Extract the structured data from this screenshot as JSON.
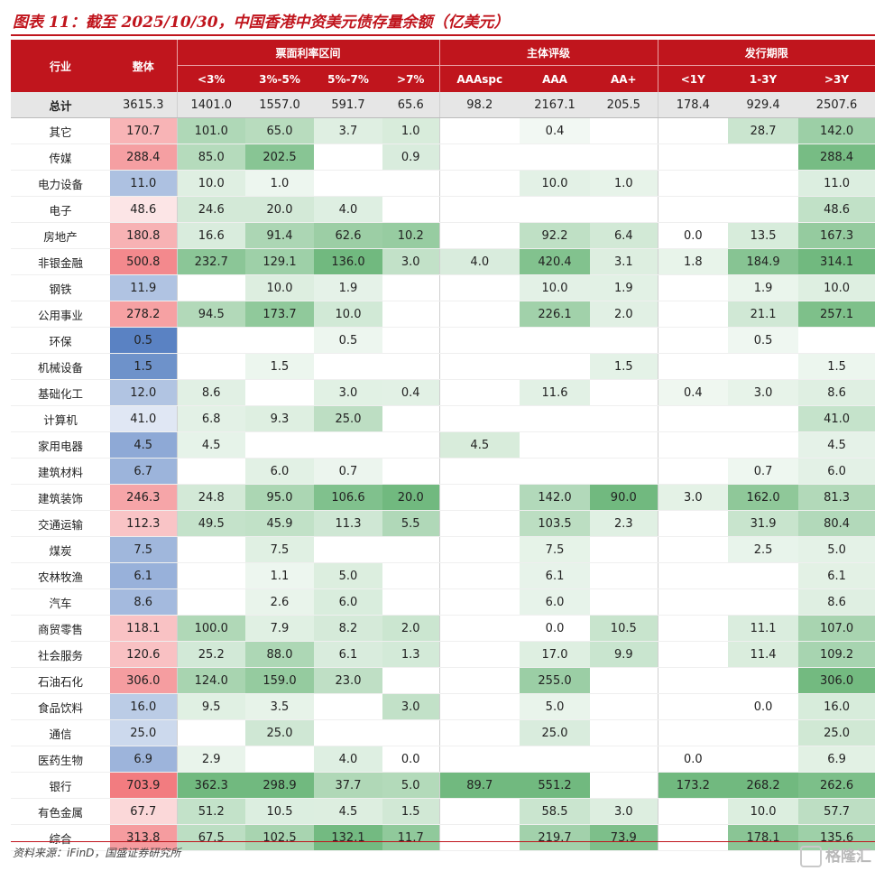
{
  "title": "图表 11：截至 2025/10/30，中国香港中资美元债存量余额（亿美元）",
  "header": {
    "industry": "行业",
    "overall": "整体",
    "group_coupon": "票面利率区间",
    "group_rating": "主体评级",
    "group_term": "发行期限",
    "sub": [
      "<3%",
      "3%-5%",
      "5%-7%",
      ">7%",
      "AAAspc",
      "AAA",
      "AA+",
      "<1Y",
      "1-3Y",
      ">3Y"
    ]
  },
  "total": [
    "总计",
    "3615.3",
    "1401.0",
    "1557.0",
    "591.7",
    "65.6",
    "98.2",
    "2167.1",
    "205.5",
    "178.4",
    "929.4",
    "2507.6"
  ],
  "rows": [
    [
      "其它",
      "170.7",
      "101.0",
      "65.0",
      "3.7",
      "1.0",
      "",
      "0.4",
      "",
      "",
      "28.7",
      "142.0"
    ],
    [
      "传媒",
      "288.4",
      "85.0",
      "202.5",
      "",
      "0.9",
      "",
      "",
      "",
      "",
      "",
      "288.4"
    ],
    [
      "电力设备",
      "11.0",
      "10.0",
      "1.0",
      "",
      "",
      "",
      "10.0",
      "1.0",
      "",
      "",
      "11.0"
    ],
    [
      "电子",
      "48.6",
      "24.6",
      "20.0",
      "4.0",
      "",
      "",
      "",
      "",
      "",
      "",
      "48.6"
    ],
    [
      "房地产",
      "180.8",
      "16.6",
      "91.4",
      "62.6",
      "10.2",
      "",
      "92.2",
      "6.4",
      "0.0",
      "13.5",
      "167.3"
    ],
    [
      "非银金融",
      "500.8",
      "232.7",
      "129.1",
      "136.0",
      "3.0",
      "4.0",
      "420.4",
      "3.1",
      "1.8",
      "184.9",
      "314.1"
    ],
    [
      "钢铁",
      "11.9",
      "",
      "10.0",
      "1.9",
      "",
      "",
      "10.0",
      "1.9",
      "",
      "1.9",
      "10.0"
    ],
    [
      "公用事业",
      "278.2",
      "94.5",
      "173.7",
      "10.0",
      "",
      "",
      "226.1",
      "2.0",
      "",
      "21.1",
      "257.1"
    ],
    [
      "环保",
      "0.5",
      "",
      "",
      "0.5",
      "",
      "",
      "",
      "",
      "",
      "0.5",
      ""
    ],
    [
      "机械设备",
      "1.5",
      "",
      "1.5",
      "",
      "",
      "",
      "",
      "1.5",
      "",
      "",
      "1.5"
    ],
    [
      "基础化工",
      "12.0",
      "8.6",
      "",
      "3.0",
      "0.4",
      "",
      "11.6",
      "",
      "0.4",
      "3.0",
      "8.6"
    ],
    [
      "计算机",
      "41.0",
      "6.8",
      "9.3",
      "25.0",
      "",
      "",
      "",
      "",
      "",
      "",
      "41.0"
    ],
    [
      "家用电器",
      "4.5",
      "4.5",
      "",
      "",
      "",
      "4.5",
      "",
      "",
      "",
      "",
      "4.5"
    ],
    [
      "建筑材料",
      "6.7",
      "",
      "6.0",
      "0.7",
      "",
      "",
      "",
      "",
      "",
      "0.7",
      "6.0"
    ],
    [
      "建筑装饰",
      "246.3",
      "24.8",
      "95.0",
      "106.6",
      "20.0",
      "",
      "142.0",
      "90.0",
      "3.0",
      "162.0",
      "81.3"
    ],
    [
      "交通运输",
      "112.3",
      "49.5",
      "45.9",
      "11.3",
      "5.5",
      "",
      "103.5",
      "2.3",
      "",
      "31.9",
      "80.4"
    ],
    [
      "煤炭",
      "7.5",
      "",
      "7.5",
      "",
      "",
      "",
      "7.5",
      "",
      "",
      "2.5",
      "5.0"
    ],
    [
      "农林牧渔",
      "6.1",
      "",
      "1.1",
      "5.0",
      "",
      "",
      "6.1",
      "",
      "",
      "",
      "6.1"
    ],
    [
      "汽车",
      "8.6",
      "",
      "2.6",
      "6.0",
      "",
      "",
      "6.0",
      "",
      "",
      "",
      "8.6"
    ],
    [
      "商贸零售",
      "118.1",
      "100.0",
      "7.9",
      "8.2",
      "2.0",
      "",
      "0.0",
      "10.5",
      "",
      "11.1",
      "107.0"
    ],
    [
      "社会服务",
      "120.6",
      "25.2",
      "88.0",
      "6.1",
      "1.3",
      "",
      "17.0",
      "9.9",
      "",
      "11.4",
      "109.2"
    ],
    [
      "石油石化",
      "306.0",
      "124.0",
      "159.0",
      "23.0",
      "",
      "",
      "255.0",
      "",
      "",
      "",
      "306.0"
    ],
    [
      "食品饮料",
      "16.0",
      "9.5",
      "3.5",
      "",
      "3.0",
      "",
      "5.0",
      "",
      "",
      "0.0",
      "16.0"
    ],
    [
      "通信",
      "25.0",
      "",
      "25.0",
      "",
      "",
      "",
      "25.0",
      "",
      "",
      "",
      "25.0"
    ],
    [
      "医药生物",
      "6.9",
      "2.9",
      "",
      "4.0",
      "0.0",
      "",
      "",
      "",
      "0.0",
      "",
      "6.9"
    ],
    [
      "银行",
      "703.9",
      "362.3",
      "298.9",
      "37.7",
      "5.0",
      "89.7",
      "551.2",
      "",
      "173.2",
      "268.2",
      "262.6"
    ],
    [
      "有色金属",
      "67.7",
      "51.2",
      "10.5",
      "4.5",
      "1.5",
      "",
      "58.5",
      "3.0",
      "",
      "10.0",
      "57.7"
    ],
    [
      "综合",
      "313.8",
      "67.5",
      "102.5",
      "132.1",
      "11.7",
      "",
      "219.7",
      "73.9",
      "",
      "178.1",
      "135.6"
    ]
  ],
  "footer": "资料来源：iFinD，国盛证券研究所",
  "watermark": "格隆汇",
  "colors": {
    "header_bg": "#c0151d",
    "high": "#f5a3a5",
    "low": "#5b84c4",
    "green": "#5aae6a"
  }
}
